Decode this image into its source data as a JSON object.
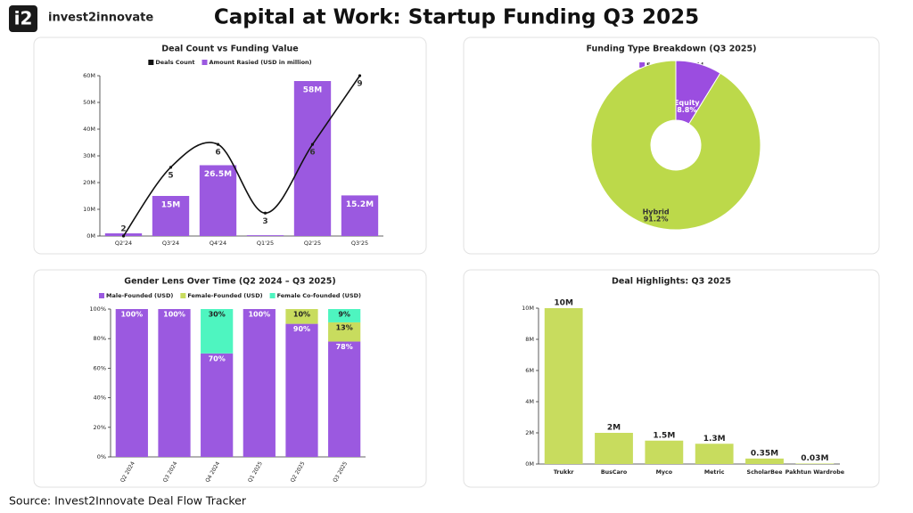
{
  "logo": {
    "mark": "i2",
    "name": "invest2innovate"
  },
  "title": "Capital at Work: Startup Funding Q3 2025",
  "source": "Source: Invest2Innovate Deal Flow Tracker",
  "chart_data": [
    {
      "type": "combo",
      "title": "Deal Count vs Funding Value",
      "categories": [
        "Q2'24",
        "Q3'24",
        "Q4'24",
        "Q1'25",
        "Q2'25",
        "Q3'25"
      ],
      "series": [
        {
          "name": "Deals Count",
          "type": "line",
          "axis": "y2",
          "color": "#111111",
          "values": [
            2,
            5,
            6,
            3,
            6,
            9
          ]
        },
        {
          "name": "Amount Rasied (USD in million)",
          "type": "bar",
          "color": "#9b59e0",
          "values": [
            1,
            15,
            26.5,
            0.3,
            58,
            15.2
          ],
          "value_labels": [
            null,
            "15M",
            "26.5M",
            null,
            "58M",
            "15.2M"
          ]
        }
      ],
      "ylim": [
        0,
        60
      ],
      "yticks": [
        {
          "value": 0,
          "label": "0M"
        },
        {
          "value": 10,
          "label": "10M"
        },
        {
          "value": 20,
          "label": "20M"
        },
        {
          "value": 30,
          "label": "30M"
        },
        {
          "value": 40,
          "label": "40M"
        },
        {
          "value": 50,
          "label": "50M"
        },
        {
          "value": 60,
          "label": "60M"
        }
      ],
      "y2lim": [
        2,
        9
      ]
    },
    {
      "type": "donut",
      "title": "Funding Type Breakdown (Q3 2025)",
      "categories": [
        "Equity",
        "Hybrid"
      ],
      "values": [
        8.8,
        91.2
      ],
      "value_labels": [
        "8.8%",
        "91.2%"
      ],
      "colors": [
        "#9b4de0",
        "#bcd94a"
      ]
    },
    {
      "type": "stacked",
      "title": "Gender Lens Over Time (Q2 2024 – Q3 2025)",
      "categories": [
        "Q2 2024",
        "Q3 2024",
        "Q4 2024",
        "Q1 2025",
        "Q2 2025",
        "Q3 2025"
      ],
      "series": [
        {
          "name": "Male-Founded (USD)",
          "color": "#9b59e0",
          "values": [
            100,
            100,
            70,
            100,
            90,
            78
          ],
          "value_labels": [
            "100%",
            "100%",
            "70%",
            "100%",
            "90%",
            "78%"
          ]
        },
        {
          "name": "Female-Founded (USD)",
          "color": "#c8dc5e",
          "values": [
            0,
            0,
            0,
            0,
            10,
            13
          ],
          "value_labels": [
            null,
            null,
            null,
            null,
            "10%",
            "13%"
          ]
        },
        {
          "name": "Female Co-founded (USD)",
          "color": "#4ef5c0",
          "values": [
            0,
            0,
            30,
            0,
            0,
            9
          ],
          "value_labels": [
            null,
            null,
            "30%",
            null,
            null,
            "9%"
          ]
        }
      ],
      "ylim": [
        0,
        100
      ],
      "yticks": [
        {
          "value": 0,
          "label": "0%"
        },
        {
          "value": 20,
          "label": "20%"
        },
        {
          "value": 40,
          "label": "40%"
        },
        {
          "value": 60,
          "label": "60%"
        },
        {
          "value": 80,
          "label": "80%"
        },
        {
          "value": 100,
          "label": "100%"
        }
      ]
    },
    {
      "type": "bar",
      "title": "Deal Highlights: Q3 2025",
      "categories": [
        "Trukkr",
        "BusCaro",
        "Myco",
        "Metric",
        "ScholarBee",
        "Pakhtun Wardrobe"
      ],
      "values": [
        10,
        2,
        1.5,
        1.3,
        0.35,
        0.03
      ],
      "value_labels": [
        "10M",
        "2M",
        "1.5M",
        "1.3M",
        "0.35M",
        "0.03M"
      ],
      "color": "#c8dc5e",
      "ylim": [
        0,
        10
      ],
      "yticks": [
        {
          "value": 0,
          "label": "0M"
        },
        {
          "value": 2,
          "label": "2M"
        },
        {
          "value": 4,
          "label": "4M"
        },
        {
          "value": 6,
          "label": "6M"
        },
        {
          "value": 8,
          "label": "8M"
        },
        {
          "value": 10,
          "label": "10M"
        }
      ]
    }
  ]
}
